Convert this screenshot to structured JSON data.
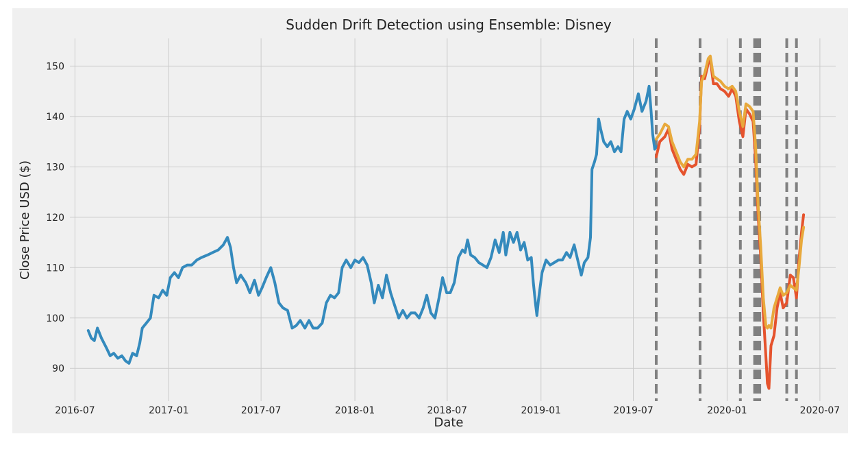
{
  "chart_data": {
    "type": "line",
    "title": "Sudden Drift Detection using Ensemble: Disney",
    "xlabel": "Date",
    "ylabel": "Close Price USD ($)",
    "ylim": [
      83.5,
      155.5
    ],
    "xlim": [
      "2016-06-21",
      "2020-08-01"
    ],
    "x_ticks": [
      "2016-07",
      "2017-01",
      "2017-07",
      "2018-01",
      "2018-07",
      "2019-01",
      "2019-07",
      "2020-01",
      "2020-07"
    ],
    "y_ticks": [
      90,
      100,
      110,
      120,
      130,
      140,
      150
    ],
    "grid": true,
    "legend": "none",
    "series": [
      {
        "color": "#348ABD",
        "points": [
          [
            "2016-07-27",
            97.5
          ],
          [
            "2016-08-02",
            96.0
          ],
          [
            "2016-08-08",
            95.5
          ],
          [
            "2016-08-14",
            98.0
          ],
          [
            "2016-08-22",
            96.0
          ],
          [
            "2016-09-01",
            94.0
          ],
          [
            "2016-09-08",
            92.5
          ],
          [
            "2016-09-15",
            93.0
          ],
          [
            "2016-09-23",
            92.0
          ],
          [
            "2016-10-01",
            92.5
          ],
          [
            "2016-10-08",
            91.5
          ],
          [
            "2016-10-15",
            91.0
          ],
          [
            "2016-10-22",
            93.0
          ],
          [
            "2016-10-30",
            92.5
          ],
          [
            "2016-11-05",
            95.0
          ],
          [
            "2016-11-10",
            98.0
          ],
          [
            "2016-11-18",
            99.0
          ],
          [
            "2016-11-26",
            100.0
          ],
          [
            "2016-12-03",
            104.5
          ],
          [
            "2016-12-12",
            104.0
          ],
          [
            "2016-12-20",
            105.5
          ],
          [
            "2016-12-28",
            104.5
          ],
          [
            "2017-01-04",
            108.0
          ],
          [
            "2017-01-12",
            109.0
          ],
          [
            "2017-01-20",
            108.0
          ],
          [
            "2017-01-28",
            110.0
          ],
          [
            "2017-02-06",
            110.5
          ],
          [
            "2017-02-15",
            110.5
          ],
          [
            "2017-02-25",
            111.5
          ],
          [
            "2017-03-06",
            112.0
          ],
          [
            "2017-03-18",
            112.5
          ],
          [
            "2017-03-28",
            113.0
          ],
          [
            "2017-04-08",
            113.5
          ],
          [
            "2017-04-18",
            114.5
          ],
          [
            "2017-04-26",
            116.0
          ],
          [
            "2017-05-02",
            114.0
          ],
          [
            "2017-05-08",
            110.0
          ],
          [
            "2017-05-14",
            107.0
          ],
          [
            "2017-05-22",
            108.5
          ],
          [
            "2017-06-01",
            107.0
          ],
          [
            "2017-06-09",
            105.0
          ],
          [
            "2017-06-18",
            107.5
          ],
          [
            "2017-06-26",
            104.5
          ],
          [
            "2017-07-03",
            106.0
          ],
          [
            "2017-07-11",
            108.0
          ],
          [
            "2017-07-20",
            110.0
          ],
          [
            "2017-07-28",
            107.0
          ],
          [
            "2017-08-05",
            103.0
          ],
          [
            "2017-08-13",
            102.0
          ],
          [
            "2017-08-22",
            101.5
          ],
          [
            "2017-08-31",
            98.0
          ],
          [
            "2017-09-08",
            98.5
          ],
          [
            "2017-09-16",
            99.5
          ],
          [
            "2017-09-25",
            98.0
          ],
          [
            "2017-10-03",
            99.5
          ],
          [
            "2017-10-11",
            98.0
          ],
          [
            "2017-10-20",
            98.0
          ],
          [
            "2017-10-29",
            99.0
          ],
          [
            "2017-11-06",
            103.0
          ],
          [
            "2017-11-14",
            104.5
          ],
          [
            "2017-11-22",
            104.0
          ],
          [
            "2017-11-30",
            105.0
          ],
          [
            "2017-12-07",
            110.0
          ],
          [
            "2017-12-15",
            111.5
          ],
          [
            "2017-12-24",
            110.0
          ],
          [
            "2018-01-01",
            111.5
          ],
          [
            "2018-01-09",
            111.0
          ],
          [
            "2018-01-17",
            112.0
          ],
          [
            "2018-01-25",
            110.5
          ],
          [
            "2018-02-02",
            107.0
          ],
          [
            "2018-02-08",
            103.0
          ],
          [
            "2018-02-16",
            106.5
          ],
          [
            "2018-02-24",
            104.0
          ],
          [
            "2018-03-04",
            108.5
          ],
          [
            "2018-03-12",
            105.0
          ],
          [
            "2018-03-20",
            102.5
          ],
          [
            "2018-03-28",
            100.0
          ],
          [
            "2018-04-05",
            101.5
          ],
          [
            "2018-04-13",
            100.0
          ],
          [
            "2018-04-21",
            101.0
          ],
          [
            "2018-04-29",
            101.0
          ],
          [
            "2018-05-07",
            100.0
          ],
          [
            "2018-05-15",
            102.0
          ],
          [
            "2018-05-22",
            104.5
          ],
          [
            "2018-05-30",
            101.0
          ],
          [
            "2018-06-07",
            100.0
          ],
          [
            "2018-06-15",
            104.0
          ],
          [
            "2018-06-22",
            108.0
          ],
          [
            "2018-06-30",
            105.0
          ],
          [
            "2018-07-07",
            105.0
          ],
          [
            "2018-07-15",
            107.0
          ],
          [
            "2018-07-23",
            112.0
          ],
          [
            "2018-07-31",
            113.5
          ],
          [
            "2018-08-05",
            113.0
          ],
          [
            "2018-08-10",
            115.5
          ],
          [
            "2018-08-16",
            112.5
          ],
          [
            "2018-08-24",
            112.0
          ],
          [
            "2018-09-01",
            111.0
          ],
          [
            "2018-09-09",
            110.5
          ],
          [
            "2018-09-17",
            110.0
          ],
          [
            "2018-09-25",
            112.0
          ],
          [
            "2018-10-03",
            115.5
          ],
          [
            "2018-10-11",
            113.0
          ],
          [
            "2018-10-19",
            117.0
          ],
          [
            "2018-10-24",
            112.5
          ],
          [
            "2018-11-01",
            117.0
          ],
          [
            "2018-11-08",
            115.0
          ],
          [
            "2018-11-15",
            117.0
          ],
          [
            "2018-11-22",
            113.5
          ],
          [
            "2018-11-29",
            115.0
          ],
          [
            "2018-12-06",
            111.5
          ],
          [
            "2018-12-13",
            112.0
          ],
          [
            "2018-12-17",
            107.0
          ],
          [
            "2018-12-21",
            103.0
          ],
          [
            "2018-12-24",
            100.5
          ],
          [
            "2018-12-27",
            103.5
          ],
          [
            "2019-01-03",
            109.0
          ],
          [
            "2019-01-11",
            111.5
          ],
          [
            "2019-01-19",
            110.5
          ],
          [
            "2019-01-27",
            111.0
          ],
          [
            "2019-02-04",
            111.5
          ],
          [
            "2019-02-12",
            111.5
          ],
          [
            "2019-02-20",
            113.0
          ],
          [
            "2019-02-27",
            112.0
          ],
          [
            "2019-03-07",
            114.5
          ],
          [
            "2019-03-14",
            111.5
          ],
          [
            "2019-03-21",
            108.5
          ],
          [
            "2019-03-27",
            111.0
          ],
          [
            "2019-04-03",
            112.0
          ],
          [
            "2019-04-08",
            116.0
          ],
          [
            "2019-04-11",
            129.5
          ],
          [
            "2019-04-16",
            131.0
          ],
          [
            "2019-04-20",
            132.5
          ],
          [
            "2019-04-24",
            139.5
          ],
          [
            "2019-04-28",
            137.5
          ],
          [
            "2019-05-04",
            135.0
          ],
          [
            "2019-05-11",
            134.0
          ],
          [
            "2019-05-18",
            135.0
          ],
          [
            "2019-05-25",
            133.0
          ],
          [
            "2019-06-01",
            134.0
          ],
          [
            "2019-06-07",
            133.0
          ],
          [
            "2019-06-13",
            139.5
          ],
          [
            "2019-06-19",
            141.0
          ],
          [
            "2019-06-26",
            139.5
          ],
          [
            "2019-07-03",
            141.5
          ],
          [
            "2019-07-11",
            144.5
          ],
          [
            "2019-07-18",
            141.0
          ],
          [
            "2019-07-26",
            143.0
          ],
          [
            "2019-08-01",
            146.0
          ],
          [
            "2019-08-05",
            141.0
          ],
          [
            "2019-08-08",
            136.5
          ],
          [
            "2019-08-12",
            133.5
          ],
          [
            "2019-08-15",
            134.0
          ]
        ]
      },
      {
        "color": "#E5532D",
        "points": [
          [
            "2019-08-15",
            132.0
          ],
          [
            "2019-08-22",
            135.0
          ],
          [
            "2019-09-01",
            136.0
          ],
          [
            "2019-09-08",
            137.5
          ],
          [
            "2019-09-15",
            133.5
          ],
          [
            "2019-09-23",
            131.5
          ],
          [
            "2019-10-01",
            129.5
          ],
          [
            "2019-10-08",
            128.5
          ],
          [
            "2019-10-16",
            130.5
          ],
          [
            "2019-10-24",
            130.0
          ],
          [
            "2019-11-01",
            130.5
          ],
          [
            "2019-11-08",
            138.0
          ],
          [
            "2019-11-12",
            148.0
          ],
          [
            "2019-11-18",
            147.5
          ],
          [
            "2019-11-25",
            150.5
          ],
          [
            "2019-11-29",
            151.5
          ],
          [
            "2019-12-05",
            146.5
          ],
          [
            "2019-12-12",
            146.5
          ],
          [
            "2019-12-19",
            145.5
          ],
          [
            "2019-12-27",
            145.0
          ],
          [
            "2020-01-04",
            144.0
          ],
          [
            "2020-01-11",
            145.5
          ],
          [
            "2020-01-18",
            144.0
          ],
          [
            "2020-01-25",
            139.0
          ],
          [
            "2020-02-01",
            136.0
          ],
          [
            "2020-02-07",
            141.5
          ],
          [
            "2020-02-14",
            140.5
          ],
          [
            "2020-02-21",
            139.0
          ],
          [
            "2020-02-26",
            131.5
          ],
          [
            "2020-03-02",
            120.0
          ],
          [
            "2020-03-07",
            112.0
          ],
          [
            "2020-03-12",
            101.0
          ],
          [
            "2020-03-17",
            92.5
          ],
          [
            "2020-03-20",
            87.0
          ],
          [
            "2020-03-23",
            86.0
          ],
          [
            "2020-03-27",
            94.5
          ],
          [
            "2020-04-02",
            96.5
          ],
          [
            "2020-04-08",
            102.0
          ],
          [
            "2020-04-14",
            105.0
          ],
          [
            "2020-04-20",
            102.0
          ],
          [
            "2020-04-27",
            103.0
          ],
          [
            "2020-05-04",
            108.5
          ],
          [
            "2020-05-10",
            108.0
          ],
          [
            "2020-05-16",
            104.0
          ],
          [
            "2020-05-21",
            111.5
          ],
          [
            "2020-05-26",
            117.0
          ],
          [
            "2020-05-30",
            120.5
          ]
        ]
      },
      {
        "color": "#E8A93C",
        "points": [
          [
            "2019-08-15",
            135.5
          ],
          [
            "2019-08-22",
            136.5
          ],
          [
            "2019-09-01",
            138.5
          ],
          [
            "2019-09-08",
            138.0
          ],
          [
            "2019-09-15",
            135.0
          ],
          [
            "2019-09-23",
            133.0
          ],
          [
            "2019-10-01",
            131.0
          ],
          [
            "2019-10-08",
            130.0
          ],
          [
            "2019-10-16",
            131.5
          ],
          [
            "2019-10-24",
            131.5
          ],
          [
            "2019-11-01",
            132.5
          ],
          [
            "2019-11-08",
            139.0
          ],
          [
            "2019-11-12",
            147.0
          ],
          [
            "2019-11-18",
            148.5
          ],
          [
            "2019-11-25",
            151.5
          ],
          [
            "2019-11-29",
            152.0
          ],
          [
            "2019-12-05",
            148.0
          ],
          [
            "2019-12-12",
            147.5
          ],
          [
            "2019-12-19",
            147.0
          ],
          [
            "2019-12-27",
            146.0
          ],
          [
            "2020-01-04",
            145.5
          ],
          [
            "2020-01-11",
            146.0
          ],
          [
            "2020-01-18",
            145.0
          ],
          [
            "2020-01-25",
            141.0
          ],
          [
            "2020-02-01",
            138.0
          ],
          [
            "2020-02-07",
            142.5
          ],
          [
            "2020-02-14",
            142.0
          ],
          [
            "2020-02-21",
            141.0
          ],
          [
            "2020-02-26",
            134.0
          ],
          [
            "2020-03-02",
            122.0
          ],
          [
            "2020-03-07",
            114.0
          ],
          [
            "2020-03-12",
            104.0
          ],
          [
            "2020-03-17",
            98.5
          ],
          [
            "2020-03-20",
            98.0
          ],
          [
            "2020-03-23",
            98.5
          ],
          [
            "2020-03-27",
            98.0
          ],
          [
            "2020-04-02",
            102.0
          ],
          [
            "2020-04-08",
            104.0
          ],
          [
            "2020-04-14",
            106.0
          ],
          [
            "2020-04-20",
            104.5
          ],
          [
            "2020-04-27",
            105.0
          ],
          [
            "2020-05-04",
            106.5
          ],
          [
            "2020-05-10",
            106.0
          ],
          [
            "2020-05-16",
            105.5
          ],
          [
            "2020-05-21",
            110.0
          ],
          [
            "2020-05-26",
            115.5
          ],
          [
            "2020-05-30",
            118.0
          ]
        ]
      }
    ],
    "drift_lines": {
      "color": "#808080",
      "dates": [
        "2019-08-15",
        "2019-11-09",
        "2020-01-27",
        "2020-02-24",
        "2020-02-27",
        "2020-03-02",
        "2020-03-05",
        "2020-04-27",
        "2020-05-16"
      ]
    }
  }
}
